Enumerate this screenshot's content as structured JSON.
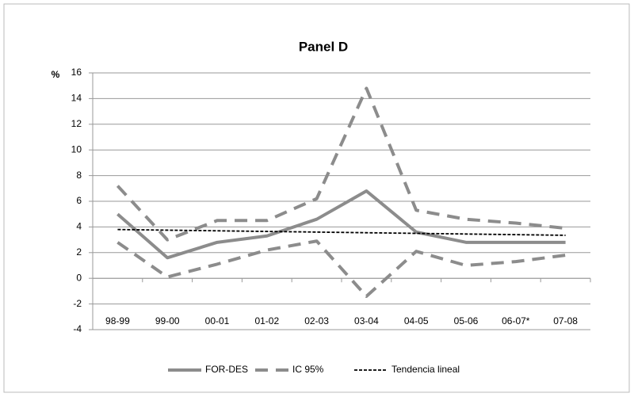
{
  "chart_data": {
    "type": "line",
    "title": "Panel D",
    "y_label": "%",
    "categories": [
      "98-99",
      "99-00",
      "00-01",
      "01-02",
      "02-03",
      "03-04",
      "04-05",
      "05-06",
      "06-07*",
      "07-08"
    ],
    "series": [
      {
        "name": "FOR-DES",
        "color": "#8c8c8c",
        "style": "solid",
        "values": [
          5.0,
          1.6,
          2.8,
          3.3,
          4.6,
          6.8,
          3.6,
          2.8,
          2.8,
          2.8
        ]
      },
      {
        "name": "IC 95%",
        "color": "#8c8c8c",
        "style": "dashed",
        "values": [
          7.2,
          3.0,
          4.5,
          4.5,
          6.2,
          14.8,
          5.3,
          4.6,
          4.3,
          3.9
        ],
        "lower": [
          2.8,
          0.1,
          1.1,
          2.2,
          2.9,
          -1.4,
          2.1,
          1.0,
          1.3,
          1.8
        ]
      },
      {
        "name": "Tendencia lineal",
        "color": "#000000",
        "style": "dotted",
        "values": [
          3.8,
          3.75,
          3.7,
          3.65,
          3.6,
          3.55,
          3.5,
          3.45,
          3.4,
          3.35
        ]
      }
    ],
    "ylim": [
      -4,
      16
    ],
    "yticks": [
      -4,
      -2,
      0,
      2,
      4,
      6,
      8,
      10,
      12,
      14,
      16
    ],
    "grid": true,
    "legend": "bottom"
  }
}
